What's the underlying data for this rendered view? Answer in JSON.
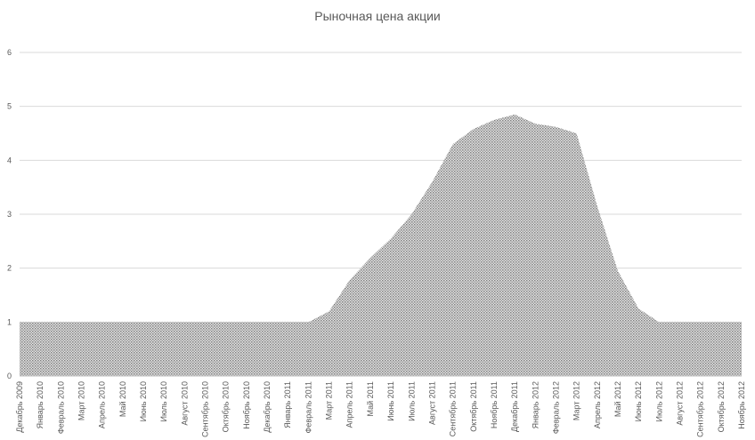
{
  "chart_data": {
    "type": "area",
    "title": "Рыночная цена акции",
    "categories": [
      "Декабрь 2009",
      "Январь 2010",
      "Февраль 2010",
      "Март 2010",
      "Апрель 2010",
      "Май 2010",
      "Июнь 2010",
      "Июль 2010",
      "Август 2010",
      "Сентябрь 2010",
      "Октябрь 2010",
      "Ноябрь 2010",
      "Декабрь 2010",
      "Январь 2011",
      "Февраль 2011",
      "Март 2011",
      "Апрель 2011",
      "Май 2011",
      "Июнь 2011",
      "Июль 2011",
      "Август 2011",
      "Сентябрь 2011",
      "Октябрь 2011",
      "Ноябрь 2011",
      "Декабрь 2011",
      "Январь 2012",
      "Февраль 2012",
      "Март 2012",
      "Апрель 2012",
      "Май 2012",
      "Июнь 2012",
      "Июль 2012",
      "Август 2012",
      "Сентябрь 2012",
      "Октябрь 2012",
      "Ноябрь 2012"
    ],
    "values": [
      1,
      1,
      1,
      1,
      1,
      1,
      1,
      1,
      1,
      1,
      1,
      1,
      1,
      1,
      1,
      1.2,
      1.78,
      2.19,
      2.55,
      3.0,
      3.6,
      4.3,
      4.58,
      4.75,
      4.85,
      4.68,
      4.62,
      4.5,
      3.15,
      1.95,
      1.25,
      1,
      1,
      1,
      1,
      1
    ],
    "color": "#7f7f7f",
    "ylim": [
      0,
      6
    ],
    "yticks": [
      0,
      1,
      2,
      3,
      4,
      5,
      6
    ],
    "grid": true
  }
}
